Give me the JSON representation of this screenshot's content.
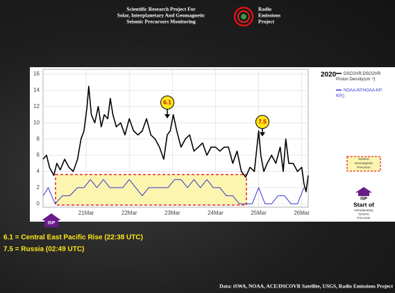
{
  "header": {
    "title_lines": [
      "Scientific Research Project For",
      "Solar, Interplanetary And Geomagnetic",
      "Seismic Precursors Monitoring"
    ],
    "logo_lines": [
      "Radio",
      "Emissions",
      "Project"
    ]
  },
  "chart_data": {
    "type": "line",
    "year": "2020",
    "xlim": [
      20,
      26.15
    ],
    "xticks": [
      {
        "value": 21,
        "label": "21Mar"
      },
      {
        "value": 22,
        "label": "22Mar"
      },
      {
        "value": 23,
        "label": "23Mar"
      },
      {
        "value": 24,
        "label": "24Mar"
      },
      {
        "value": 25,
        "label": "25Mar"
      },
      {
        "value": 26,
        "label": "26Mar"
      }
    ],
    "ylim": [
      -0.4,
      16.6
    ],
    "yticks": [
      0,
      2,
      4,
      6,
      8,
      10,
      12,
      14,
      16
    ],
    "grid": true,
    "series": [
      {
        "name": "DSCOVR.DSCOVR: Proton Density(cm⁻³)",
        "color": "#000000",
        "x": [
          20.0,
          20.08,
          20.15,
          20.25,
          20.32,
          20.4,
          20.5,
          20.6,
          20.7,
          20.8,
          20.88,
          20.95,
          21.02,
          21.06,
          21.12,
          21.2,
          21.28,
          21.35,
          21.42,
          21.5,
          21.56,
          21.62,
          21.7,
          21.8,
          21.9,
          22.0,
          22.1,
          22.2,
          22.3,
          22.4,
          22.5,
          22.6,
          22.7,
          22.8,
          22.88,
          22.95,
          23.02,
          23.1,
          23.2,
          23.3,
          23.4,
          23.5,
          23.6,
          23.7,
          23.8,
          23.9,
          24.0,
          24.1,
          24.2,
          24.3,
          24.4,
          24.5,
          24.6,
          24.7,
          24.8,
          24.9,
          25.0,
          25.05,
          25.12,
          25.2,
          25.3,
          25.4,
          25.5,
          25.57,
          25.63,
          25.7,
          25.8,
          25.9,
          26.0,
          26.05,
          26.1,
          26.15
        ],
        "values": [
          5.5,
          6,
          4.5,
          3.5,
          5,
          4.2,
          5.5,
          4.5,
          4,
          5.5,
          8,
          9,
          12,
          14.5,
          11,
          10,
          12,
          9.5,
          11,
          10.5,
          13,
          11,
          9.5,
          10,
          8.5,
          10.5,
          9,
          8.5,
          9,
          10.5,
          8.5,
          8,
          7,
          5.5,
          8.5,
          9,
          11,
          9,
          7,
          8,
          8.5,
          6.5,
          7,
          7.5,
          6,
          7,
          7,
          6.5,
          7,
          7,
          5,
          6.5,
          4,
          3.3,
          4.5,
          4,
          9,
          6,
          4,
          5,
          6,
          5,
          7,
          4,
          8,
          5,
          5,
          4,
          4.5,
          2.5,
          1.5,
          3.5
        ]
      },
      {
        "name": "NOAA-KP.NOAA-KP: KP()",
        "color": "#3333cc",
        "x": [
          20.0,
          20.12,
          20.28,
          20.45,
          20.62,
          20.8,
          20.95,
          21.1,
          21.25,
          21.4,
          21.55,
          21.7,
          21.85,
          22.0,
          22.15,
          22.3,
          22.45,
          22.6,
          22.75,
          22.9,
          23.05,
          23.2,
          23.35,
          23.5,
          23.65,
          23.8,
          23.95,
          24.1,
          24.25,
          24.4,
          24.55,
          24.7,
          24.85,
          25.0,
          25.15,
          25.3,
          25.45,
          25.6,
          25.75,
          25.9,
          26.05
        ],
        "values": [
          1,
          2,
          0,
          1,
          1,
          2,
          2,
          3,
          2,
          3,
          2,
          2,
          2,
          3,
          2,
          1,
          2,
          2,
          2,
          2,
          3,
          3,
          2,
          3,
          2,
          3,
          2,
          2,
          1,
          1,
          0,
          0,
          0,
          2,
          0,
          0,
          1,
          1,
          0,
          0,
          2
        ]
      }
    ],
    "annotations": [
      "6.1",
      "7.5"
    ],
    "precursor_lines": [
      "Seismic",
      "Geomagnetic",
      "Precursor"
    ],
    "isp_left": "ISP",
    "isp_right": {
      "icon": "ISP",
      "title": "Start of",
      "lines": [
        "Interplanetary",
        "Seismic",
        "Precursor"
      ]
    }
  },
  "notes": [
    "6.1 = Central East Pacific Rise (22:38 UTC)",
    "7.5 = Russia (02:49 UTC)"
  ],
  "footer": "Data: iSWA, NOAA, ACE/DSCOVR Satellite, USGS, Radio Emissions Project"
}
